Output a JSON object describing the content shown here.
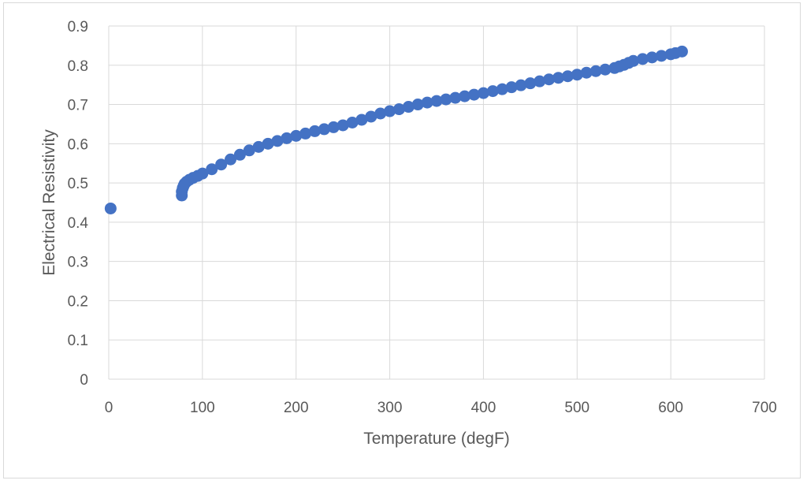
{
  "chart_data": {
    "type": "scatter",
    "title": "",
    "xlabel": "Temperature (degF)",
    "ylabel": "Electrical Resistivity",
    "xlim": [
      0,
      700
    ],
    "ylim": [
      0,
      0.9
    ],
    "x_ticks": [
      0,
      100,
      200,
      300,
      400,
      500,
      600,
      700
    ],
    "y_ticks": [
      0,
      0.1,
      0.2,
      0.3,
      0.4,
      0.5,
      0.6,
      0.7,
      0.8,
      0.9
    ],
    "x_tick_labels": [
      "0",
      "100",
      "200",
      "300",
      "400",
      "500",
      "600",
      "700"
    ],
    "y_tick_labels": [
      "0",
      "0.1",
      "0.2",
      "0.3",
      "0.4",
      "0.5",
      "0.6",
      "0.7",
      "0.8",
      "0.9"
    ],
    "grid": true,
    "legend": "none",
    "colors": {
      "marker": "#4472c4",
      "grid": "#d9d9d9",
      "text": "#595959"
    },
    "series": [
      {
        "x": [
          2,
          78,
          78,
          79,
          80,
          81,
          83,
          86,
          90,
          95,
          100,
          110,
          120,
          130,
          140,
          150,
          160,
          170,
          180,
          190,
          200,
          210,
          220,
          230,
          240,
          250,
          260,
          270,
          280,
          290,
          300,
          310,
          320,
          330,
          340,
          350,
          360,
          370,
          380,
          390,
          400,
          410,
          420,
          430,
          440,
          450,
          460,
          470,
          480,
          490,
          500,
          510,
          520,
          530,
          540,
          545,
          550,
          555,
          560,
          570,
          580,
          590,
          600,
          605,
          612
        ],
        "y": [
          0.435,
          0.468,
          0.478,
          0.487,
          0.493,
          0.498,
          0.503,
          0.508,
          0.513,
          0.518,
          0.524,
          0.535,
          0.547,
          0.56,
          0.572,
          0.583,
          0.592,
          0.6,
          0.607,
          0.614,
          0.62,
          0.626,
          0.632,
          0.637,
          0.642,
          0.647,
          0.654,
          0.661,
          0.669,
          0.677,
          0.683,
          0.688,
          0.694,
          0.7,
          0.705,
          0.709,
          0.713,
          0.717,
          0.721,
          0.725,
          0.729,
          0.734,
          0.739,
          0.744,
          0.749,
          0.754,
          0.759,
          0.764,
          0.768,
          0.772,
          0.776,
          0.781,
          0.785,
          0.789,
          0.793,
          0.797,
          0.801,
          0.806,
          0.811,
          0.816,
          0.82,
          0.824,
          0.828,
          0.831,
          0.835
        ]
      }
    ]
  }
}
